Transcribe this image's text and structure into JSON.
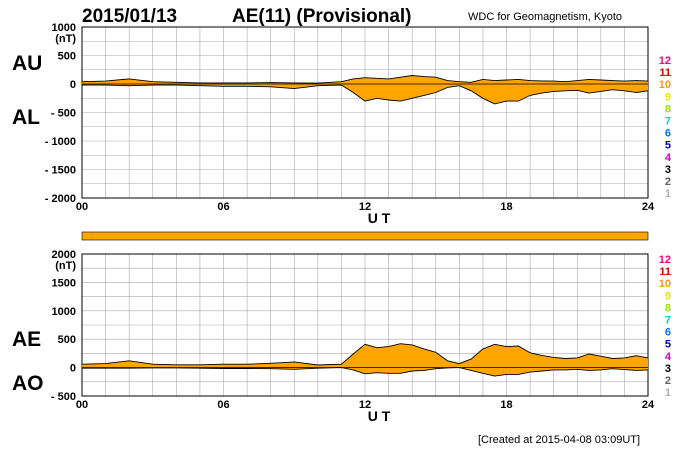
{
  "header": {
    "date": "2015/01/13",
    "title": "AE(11) (Provisional)",
    "source": "WDC for Geomagnetism, Kyoto",
    "created": "[Created at 2015-04-08 03:09UT]"
  },
  "colors": {
    "fill": "#ffa500",
    "line": "#000000",
    "grid": "#aaaaaa",
    "band": "#ffa500"
  },
  "scale_legend": {
    "labels": [
      "12",
      "11",
      "10",
      "9",
      "8",
      "7",
      "6",
      "5",
      "4",
      "3",
      "2",
      "1"
    ],
    "colors": [
      "#ff0080",
      "#e00000",
      "#ff9900",
      "#e6e600",
      "#a0e000",
      "#00d0d0",
      "#0070ff",
      "#0000c0",
      "#d000d0",
      "#000000",
      "#606060",
      "#b0b0b0"
    ]
  },
  "chart_data": [
    {
      "type": "area",
      "name": "AU/AL",
      "side_labels": [
        "AU",
        "AL"
      ],
      "ylabel": "(nT)",
      "xlabel": "U T",
      "xlim": [
        0,
        24
      ],
      "ylim": [
        -2000,
        1000
      ],
      "xticks": [
        "00",
        "06",
        "12",
        "18",
        "24"
      ],
      "yticks": [
        {
          "v": 1000,
          "label": "1000"
        },
        {
          "v": 500,
          "label": "500"
        },
        {
          "v": 0,
          "label": "0"
        },
        {
          "v": -500,
          "label": "- 500"
        },
        {
          "v": -1000,
          "label": "- 1000"
        },
        {
          "v": -1500,
          "label": "- 1500"
        },
        {
          "v": -2000,
          "label": "- 2000"
        }
      ],
      "x": [
        0,
        1,
        2,
        3,
        4,
        5,
        6,
        7,
        8,
        9,
        10,
        11,
        11.5,
        12,
        12.5,
        13,
        13.5,
        14,
        14.5,
        15,
        15.5,
        16,
        16.5,
        17,
        17.5,
        18,
        18.5,
        19,
        19.5,
        20,
        20.5,
        21,
        21.5,
        22,
        22.5,
        23,
        23.5,
        24
      ],
      "upper": [
        40,
        50,
        90,
        40,
        30,
        20,
        20,
        20,
        25,
        20,
        15,
        40,
        90,
        110,
        100,
        90,
        120,
        150,
        130,
        120,
        60,
        40,
        30,
        80,
        60,
        70,
        80,
        60,
        55,
        50,
        40,
        60,
        80,
        70,
        60,
        50,
        60,
        50
      ],
      "lower": [
        -20,
        -20,
        -30,
        -20,
        -20,
        -30,
        -40,
        -40,
        -50,
        -80,
        -30,
        -20,
        -150,
        -300,
        -250,
        -280,
        -300,
        -250,
        -200,
        -150,
        -60,
        -30,
        -120,
        -250,
        -350,
        -300,
        -300,
        -200,
        -160,
        -130,
        -120,
        -110,
        -160,
        -130,
        -100,
        -120,
        -150,
        -120
      ]
    },
    {
      "type": "area",
      "name": "AE/AO",
      "side_labels": [
        "AE",
        "AO"
      ],
      "ylabel": "(nT)",
      "xlabel": "U T",
      "xlim": [
        0,
        24
      ],
      "ylim": [
        -500,
        2000
      ],
      "xticks": [
        "00",
        "06",
        "12",
        "18",
        "24"
      ],
      "yticks": [
        {
          "v": 2000,
          "label": "2000"
        },
        {
          "v": 1500,
          "label": "1500"
        },
        {
          "v": 1000,
          "label": "1000"
        },
        {
          "v": 500,
          "label": "500"
        },
        {
          "v": 0,
          "label": "0"
        },
        {
          "v": -500,
          "label": "- 500"
        }
      ],
      "x": [
        0,
        1,
        2,
        3,
        4,
        5,
        6,
        7,
        8,
        9,
        10,
        11,
        11.5,
        12,
        12.5,
        13,
        13.5,
        14,
        14.5,
        15,
        15.5,
        16,
        16.5,
        17,
        17.5,
        18,
        18.5,
        19,
        19.5,
        20,
        20.5,
        21,
        21.5,
        22,
        22.5,
        23,
        23.5,
        24
      ],
      "upper": [
        60,
        70,
        120,
        60,
        50,
        50,
        60,
        60,
        75,
        100,
        45,
        60,
        240,
        410,
        350,
        370,
        420,
        400,
        330,
        270,
        120,
        70,
        150,
        330,
        410,
        370,
        380,
        260,
        215,
        180,
        160,
        170,
        240,
        200,
        160,
        170,
        210,
        170
      ],
      "lower": [
        -10,
        -10,
        -10,
        -5,
        -5,
        -10,
        -15,
        -15,
        -20,
        -30,
        -10,
        0,
        -40,
        -110,
        -90,
        -100,
        -100,
        -60,
        -50,
        -20,
        -5,
        0,
        -50,
        -100,
        -150,
        -120,
        -120,
        -80,
        -60,
        -40,
        -40,
        -30,
        -50,
        -40,
        -20,
        -35,
        -50,
        -40
      ]
    }
  ]
}
